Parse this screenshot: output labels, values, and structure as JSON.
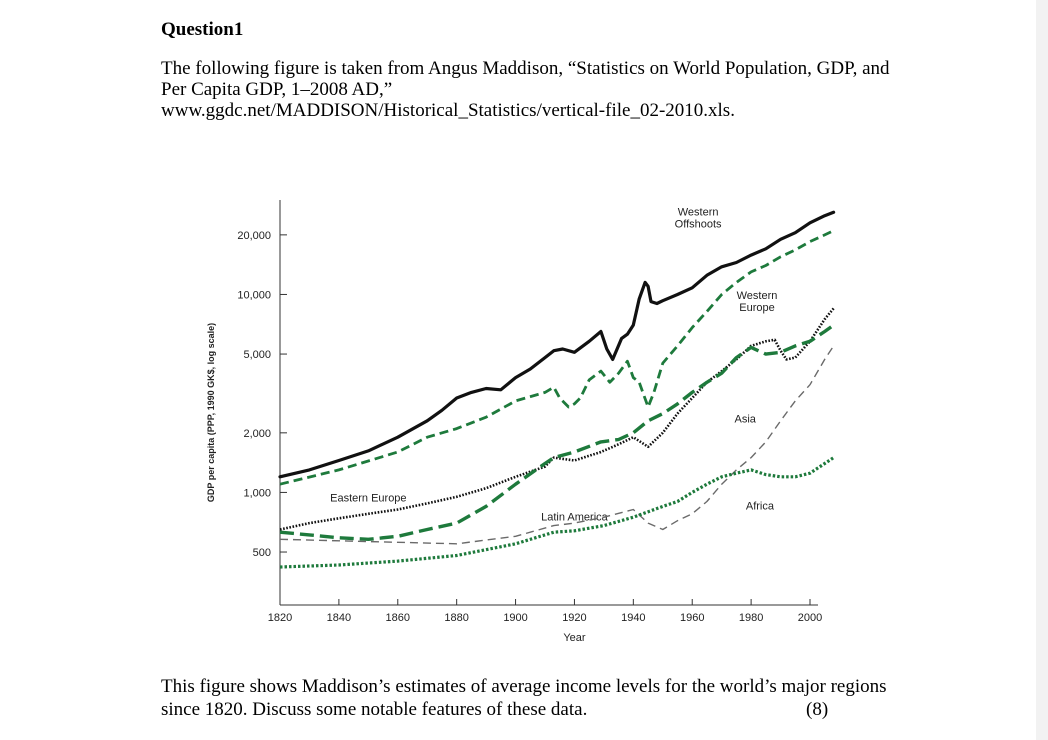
{
  "question": {
    "title": "Question1",
    "intro_lines": [
      "The following figure is taken from Angus Maddison, “Statistics on World Population, GDP, and",
      "Per Capita GDP, 1–2008 AD,”",
      "www.ggdc.net/MADDISON/Historical_Statistics/vertical-file_02-2010.xls."
    ],
    "outro_lines": [
      "This figure shows Maddison’s estimates of average income levels for the world’s major regions",
      "since 1820. Discuss some notable features of these data."
    ],
    "marks": "(8)"
  },
  "colors": {
    "black": "#111111",
    "green": "#1e7a3c",
    "gray": "#6a6a6a"
  },
  "chart_data": {
    "type": "line",
    "xlabel": "Year",
    "ylabel": "GDP per capita (PPP, 1990 GK$, log scale)",
    "xlim": [
      1820,
      2000
    ],
    "ylim": [
      270,
      30000
    ],
    "yscale": "log",
    "x_ticks": [
      1820,
      1840,
      1860,
      1880,
      1900,
      1920,
      1940,
      1960,
      1980,
      2000
    ],
    "y_ticks": [
      {
        "value": 500,
        "label": "500"
      },
      {
        "value": 1000,
        "label": "1,000"
      },
      {
        "value": 2000,
        "label": "2,000"
      },
      {
        "value": 5000,
        "label": "5,000"
      },
      {
        "value": 10000,
        "label": "10,000"
      },
      {
        "value": 20000,
        "label": "20,000"
      }
    ],
    "series": [
      {
        "name": "Western Offshoots",
        "style": "solid-black",
        "label": [
          "Western",
          "Offshoots"
        ],
        "label_at": [
          1962,
          25000
        ],
        "x": [
          1820,
          1830,
          1840,
          1850,
          1860,
          1870,
          1875,
          1880,
          1885,
          1890,
          1895,
          1900,
          1905,
          1910,
          1913,
          1916,
          1920,
          1925,
          1929,
          1931,
          1933,
          1936,
          1938,
          1940,
          1942,
          1944,
          1945,
          1946,
          1948,
          1950,
          1955,
          1960,
          1965,
          1970,
          1975,
          1980,
          1985,
          1990,
          1995,
          2000,
          2005,
          2008
        ],
        "values": [
          1200,
          1300,
          1450,
          1620,
          1900,
          2300,
          2600,
          3000,
          3200,
          3350,
          3300,
          3800,
          4200,
          4800,
          5200,
          5300,
          5100,
          5800,
          6500,
          5300,
          4700,
          6000,
          6300,
          7000,
          9500,
          11500,
          11000,
          9200,
          9000,
          9300,
          10000,
          10800,
          12500,
          13800,
          14500,
          15800,
          17000,
          19000,
          20500,
          23000,
          25000,
          26000
        ]
      },
      {
        "name": "Western Europe",
        "style": "dashed-green",
        "label": [
          "Western",
          "Europe"
        ],
        "label_at": [
          1982,
          9500
        ],
        "x": [
          1820,
          1840,
          1860,
          1870,
          1880,
          1890,
          1900,
          1910,
          1913,
          1915,
          1918,
          1920,
          1922,
          1925,
          1929,
          1932,
          1935,
          1938,
          1940,
          1942,
          1945,
          1947,
          1950,
          1955,
          1960,
          1965,
          1970,
          1975,
          1980,
          1985,
          1990,
          1995,
          2000,
          2005,
          2008
        ],
        "values": [
          1100,
          1300,
          1600,
          1900,
          2100,
          2400,
          2900,
          3200,
          3400,
          3000,
          2700,
          2800,
          3000,
          3700,
          4100,
          3600,
          4000,
          4600,
          3800,
          3600,
          2700,
          3200,
          4500,
          5500,
          6800,
          8200,
          10000,
          11500,
          13000,
          14000,
          15500,
          16800,
          18500,
          20000,
          21000
        ]
      },
      {
        "name": "Eastern Europe",
        "style": "dotted-black",
        "label": [
          "Eastern Europe"
        ],
        "label_at": [
          1850,
          900
        ],
        "x": [
          1820,
          1830,
          1840,
          1850,
          1860,
          1870,
          1880,
          1890,
          1900,
          1910,
          1913,
          1920,
          1929,
          1935,
          1940,
          1945,
          1950,
          1955,
          1960,
          1965,
          1970,
          1975,
          1980,
          1985,
          1988,
          1990,
          1992,
          1995,
          2000,
          2005,
          2008
        ],
        "values": [
          650,
          700,
          740,
          780,
          820,
          880,
          950,
          1050,
          1200,
          1350,
          1500,
          1450,
          1600,
          1750,
          1900,
          1700,
          2000,
          2500,
          3000,
          3600,
          4100,
          4700,
          5500,
          5800,
          5900,
          5200,
          4700,
          4800,
          5800,
          7500,
          8500
        ]
      },
      {
        "name": "Latin America",
        "style": "dashed-green-thick",
        "label": [
          "Latin America"
        ],
        "label_at": [
          1920,
          720
        ],
        "x": [
          1820,
          1830,
          1840,
          1850,
          1860,
          1870,
          1880,
          1890,
          1900,
          1910,
          1913,
          1920,
          1929,
          1935,
          1940,
          1945,
          1950,
          1955,
          1960,
          1965,
          1970,
          1975,
          1980,
          1985,
          1990,
          1995,
          2000,
          2005,
          2008
        ],
        "values": [
          630,
          610,
          590,
          580,
          600,
          650,
          700,
          850,
          1100,
          1400,
          1500,
          1600,
          1800,
          1850,
          2000,
          2300,
          2500,
          2800,
          3200,
          3600,
          4000,
          4800,
          5400,
          5000,
          5100,
          5500,
          5800,
          6500,
          7000
        ]
      },
      {
        "name": "Asia",
        "style": "dashed-black",
        "label": [
          "Asia"
        ],
        "label_at": [
          1978,
          2250
        ],
        "x": [
          1820,
          1840,
          1860,
          1880,
          1900,
          1913,
          1920,
          1930,
          1940,
          1945,
          1950,
          1955,
          1960,
          1965,
          1970,
          1975,
          1980,
          1985,
          1990,
          1995,
          2000,
          2005,
          2008
        ],
        "values": [
          580,
          570,
          560,
          550,
          600,
          680,
          700,
          750,
          820,
          700,
          650,
          720,
          780,
          900,
          1100,
          1300,
          1500,
          1800,
          2300,
          2900,
          3500,
          4700,
          5500
        ]
      },
      {
        "name": "Africa",
        "style": "dotted-green",
        "label": [
          "Africa"
        ],
        "label_at": [
          1983,
          820
        ],
        "x": [
          1820,
          1840,
          1860,
          1880,
          1900,
          1913,
          1920,
          1930,
          1940,
          1950,
          1955,
          1960,
          1965,
          1970,
          1975,
          1980,
          1985,
          1990,
          1995,
          2000,
          2005,
          2008
        ],
        "values": [
          420,
          430,
          450,
          480,
          550,
          630,
          640,
          680,
          750,
          850,
          900,
          1000,
          1100,
          1200,
          1250,
          1300,
          1230,
          1200,
          1200,
          1250,
          1400,
          1500
        ]
      }
    ]
  }
}
